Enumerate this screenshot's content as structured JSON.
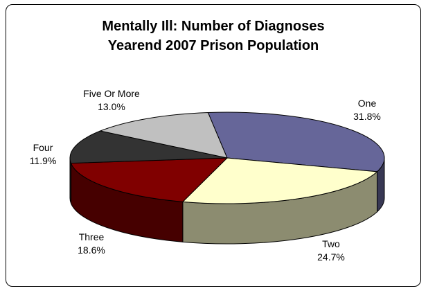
{
  "chart_data": {
    "type": "pie",
    "title": [
      "Mentally Ill: Number of Diagnoses",
      "Yearend 2007 Prison Population"
    ],
    "slices": [
      {
        "label": "One",
        "percent_label": "31.8%",
        "value": 31.8,
        "color": "#666699"
      },
      {
        "label": "Two",
        "percent_label": "24.7%",
        "value": 24.7,
        "color": "#FFFFCC"
      },
      {
        "label": "Three",
        "percent_label": "18.6%",
        "value": 18.6,
        "color": "#800000"
      },
      {
        "label": "Four",
        "percent_label": "11.9%",
        "value": 11.9,
        "color": "#333333"
      },
      {
        "label": "Five Or More",
        "percent_label": "13.0%",
        "value": 13.0,
        "color": "#C0C0C0"
      }
    ],
    "three_d": true
  }
}
